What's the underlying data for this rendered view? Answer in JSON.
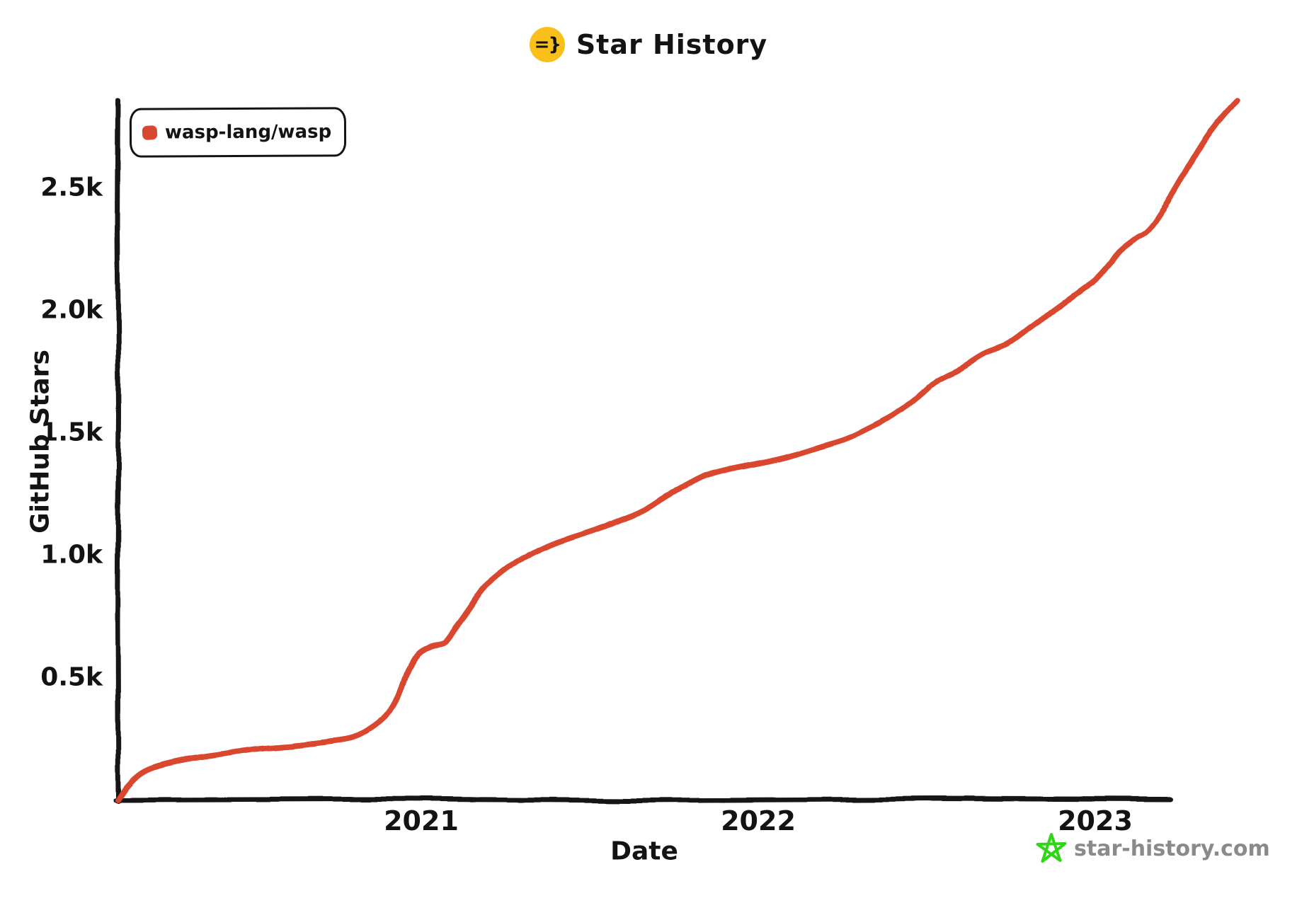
{
  "header": {
    "title": "Star History",
    "icon_glyph": "=}",
    "icon_bg": "#f9bf1b"
  },
  "legend": {
    "items": [
      {
        "label": "wasp-lang/wasp",
        "color": "#d8472f"
      }
    ]
  },
  "footer": {
    "brand_label": "star-history.com",
    "brand_text_color": "#8a8a8a",
    "star_icon_color": "#2fd615"
  },
  "chart_data": {
    "type": "line",
    "title": "Star History",
    "xlabel": "Date",
    "ylabel": "GitHub Stars",
    "grid": false,
    "legend_position": "top-left",
    "xlim": [
      2020.1,
      2023.5
    ],
    "ylim": [
      0,
      2900
    ],
    "x_ticks": [
      {
        "value": 2021,
        "label": "2021"
      },
      {
        "value": 2022,
        "label": "2022"
      },
      {
        "value": 2023,
        "label": "2023"
      }
    ],
    "y_ticks": [
      {
        "value": 500,
        "label": "0.5k"
      },
      {
        "value": 1000,
        "label": "1.0k"
      },
      {
        "value": 1500,
        "label": "1.5k"
      },
      {
        "value": 2000,
        "label": "2.0k"
      },
      {
        "value": 2500,
        "label": "2.5k"
      }
    ],
    "series": [
      {
        "name": "wasp-lang/wasp",
        "color": "#d8472f",
        "points": [
          [
            2020.1,
            0
          ],
          [
            2020.13,
            60
          ],
          [
            2020.17,
            110
          ],
          [
            2020.22,
            140
          ],
          [
            2020.3,
            165
          ],
          [
            2020.42,
            190
          ],
          [
            2020.52,
            210
          ],
          [
            2020.62,
            222
          ],
          [
            2020.72,
            237
          ],
          [
            2020.8,
            255
          ],
          [
            2020.86,
            300
          ],
          [
            2020.9,
            350
          ],
          [
            2020.93,
            420
          ],
          [
            2020.96,
            530
          ],
          [
            2020.99,
            600
          ],
          [
            2021.03,
            630
          ],
          [
            2021.07,
            645
          ],
          [
            2021.1,
            700
          ],
          [
            2021.14,
            775
          ],
          [
            2021.18,
            855
          ],
          [
            2021.21,
            895
          ],
          [
            2021.26,
            950
          ],
          [
            2021.31,
            990
          ],
          [
            2021.4,
            1045
          ],
          [
            2021.52,
            1100
          ],
          [
            2021.58,
            1135
          ],
          [
            2021.66,
            1180
          ],
          [
            2021.73,
            1240
          ],
          [
            2021.83,
            1315
          ],
          [
            2021.9,
            1345
          ],
          [
            2021.97,
            1365
          ],
          [
            2022.04,
            1385
          ],
          [
            2022.11,
            1410
          ],
          [
            2022.18,
            1440
          ],
          [
            2022.26,
            1475
          ],
          [
            2022.33,
            1520
          ],
          [
            2022.4,
            1570
          ],
          [
            2022.47,
            1640
          ],
          [
            2022.53,
            1710
          ],
          [
            2022.6,
            1760
          ],
          [
            2022.67,
            1820
          ],
          [
            2022.74,
            1860
          ],
          [
            2022.81,
            1930
          ],
          [
            2022.88,
            2000
          ],
          [
            2022.93,
            2050
          ],
          [
            2022.97,
            2090
          ],
          [
            2023.0,
            2120
          ],
          [
            2023.04,
            2180
          ],
          [
            2023.07,
            2235
          ],
          [
            2023.12,
            2290
          ],
          [
            2023.16,
            2330
          ],
          [
            2023.22,
            2450
          ],
          [
            2023.28,
            2590
          ],
          [
            2023.33,
            2700
          ],
          [
            2023.38,
            2790
          ],
          [
            2023.42,
            2850
          ]
        ]
      }
    ]
  }
}
